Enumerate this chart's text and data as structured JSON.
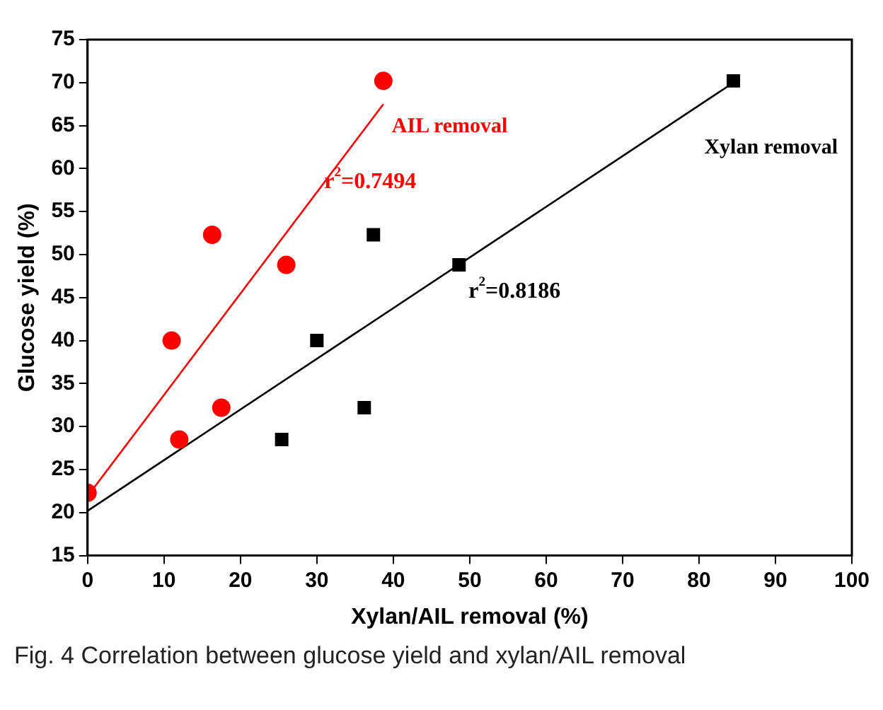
{
  "chart_data": {
    "type": "scatter",
    "xlabel": "Xylan/AIL removal (%)",
    "ylabel": "Glucose yield (%)",
    "xlim": [
      0,
      100
    ],
    "xticks": [
      0,
      10,
      20,
      30,
      40,
      50,
      60,
      70,
      80,
      90,
      100
    ],
    "ylim": [
      15,
      75
    ],
    "yticks": [
      15,
      20,
      25,
      30,
      35,
      40,
      45,
      50,
      55,
      60,
      65,
      70,
      75
    ],
    "grid": false,
    "legend": false,
    "series": [
      {
        "marker": "circle",
        "color": "#ff0000",
        "x": [
          0,
          11,
          12,
          16.3,
          17.5,
          26,
          38.7
        ],
        "values": [
          22.3,
          40,
          28.5,
          52.3,
          32.2,
          48.8,
          70.2
        ]
      },
      {
        "marker": "square",
        "color": "#000000",
        "x": [
          25.4,
          30,
          36.2,
          37.4,
          48.6,
          84.5
        ],
        "values": [
          28.5,
          40,
          32.2,
          52.3,
          48.8,
          70.2
        ]
      },
      {
        "type": "line",
        "name": "AIL removal",
        "color": "#ff0000",
        "x": [
          0,
          38.7
        ],
        "values": [
          21.9,
          67.5
        ]
      },
      {
        "type": "line",
        "name": "Xylan removal",
        "color": "#000000",
        "x": [
          0,
          84.5
        ],
        "values": [
          20.2,
          70.0
        ]
      }
    ],
    "annotations": [
      "r$^{2}$=0.7494",
      "r$^{2}$=0.8186",
      "Fig. 4 Correlation between glucose yield and xylan/AIL removal"
    ]
  }
}
